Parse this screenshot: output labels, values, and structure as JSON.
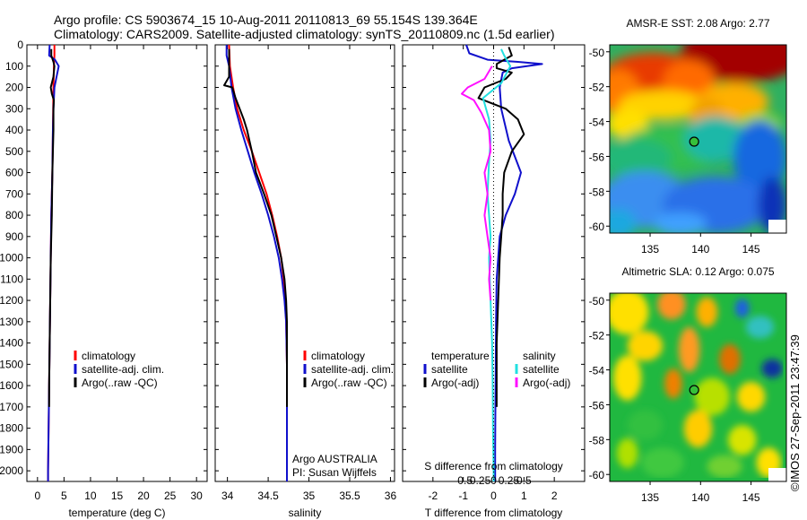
{
  "header": {
    "title_line1": "Argo profile: CS 5903674_15 10-Aug-2011 20110813_69 55.154S 139.364E",
    "title_line2": "Climatology: CARS2009. Satellite-adjusted climatology: synTS_20110809.nc (1.5d earlier)"
  },
  "colors": {
    "red": "#ff0000",
    "blue": "#1010cc",
    "black": "#000000",
    "cyan": "#22e0e0",
    "magenta": "#ff10ff"
  },
  "credit": "©IMOS 27-Sep-2011 23:47:39",
  "chart_data": [
    {
      "type": "line",
      "panel": "temperature",
      "xlabel": "temperature (deg C)",
      "ylabel": "",
      "xlim": [
        -2,
        32
      ],
      "ylim": [
        2050,
        0
      ],
      "xticks": [
        0,
        5,
        10,
        15,
        20,
        25,
        30
      ],
      "xtick_labels": [
        "0",
        "5",
        "10",
        "15",
        "20",
        "25",
        "30"
      ],
      "yticks": [
        0,
        100,
        200,
        300,
        400,
        500,
        600,
        700,
        800,
        900,
        1000,
        1100,
        1200,
        1300,
        1400,
        1500,
        1600,
        1700,
        1800,
        1900,
        2000
      ],
      "ytick_labels": [
        "0",
        "100",
        "200",
        "300",
        "400",
        "500",
        "600",
        "700",
        "800",
        "900",
        "1000",
        "1100",
        "1200",
        "1300",
        "1400",
        "1500",
        "1600",
        "1700",
        "1800",
        "1900",
        "2000"
      ],
      "legend": [
        "climatology",
        "satellite-adj. clim.",
        "Argo(..raw -QC)"
      ],
      "legend_location": "center-right",
      "series": [
        {
          "name": "climatology",
          "color": "red",
          "points": [
            [
              3.2,
              0
            ],
            [
              3.2,
              50
            ],
            [
              3.1,
              100
            ],
            [
              3.0,
              200
            ],
            [
              2.9,
              400
            ],
            [
              2.8,
              600
            ],
            [
              2.6,
              800
            ],
            [
              2.5,
              1000
            ],
            [
              2.4,
              1200
            ],
            [
              2.3,
              1400
            ],
            [
              2.2,
              1600
            ],
            [
              2.1,
              1800
            ],
            [
              2.0,
              2000
            ],
            [
              2.0,
              2050
            ]
          ]
        },
        {
          "name": "satellite-adj. clim.",
          "color": "blue",
          "points": [
            [
              2.3,
              0
            ],
            [
              2.2,
              50
            ],
            [
              3.3,
              70
            ],
            [
              4.0,
              100
            ],
            [
              3.6,
              150
            ],
            [
              3.2,
              200
            ],
            [
              3.0,
              300
            ],
            [
              2.9,
              400
            ],
            [
              2.8,
              600
            ],
            [
              2.6,
              800
            ],
            [
              2.5,
              1000
            ],
            [
              2.4,
              1200
            ],
            [
              2.3,
              1400
            ],
            [
              2.2,
              1600
            ],
            [
              2.1,
              1800
            ],
            [
              2.0,
              2000
            ],
            [
              2.0,
              2050
            ]
          ]
        },
        {
          "name": "Argo(..raw -QC)",
          "color": "black",
          "points": [
            [
              2.6,
              20
            ],
            [
              2.6,
              50
            ],
            [
              3.0,
              80
            ],
            [
              3.2,
              100
            ],
            [
              3.0,
              150
            ],
            [
              2.5,
              200
            ],
            [
              2.7,
              230
            ],
            [
              3.1,
              260
            ],
            [
              3.0,
              300
            ],
            [
              3.0,
              400
            ],
            [
              2.8,
              600
            ],
            [
              2.7,
              800
            ],
            [
              2.5,
              1000
            ],
            [
              2.4,
              1200
            ],
            [
              2.3,
              1400
            ],
            [
              2.2,
              1600
            ],
            [
              2.2,
              1700
            ]
          ]
        }
      ]
    },
    {
      "type": "line",
      "panel": "salinity",
      "xlabel": "salinity",
      "ylabel": "",
      "xlim": [
        33.85,
        36.05
      ],
      "ylim": [
        2050,
        0
      ],
      "xticks": [
        34,
        34.5,
        35,
        35.5,
        36
      ],
      "xtick_labels": [
        "34",
        "34.5",
        "35",
        "35.5",
        "36"
      ],
      "legend": [
        "climatology",
        "satellite-adj. clim.",
        "Argo(..raw -QC)"
      ],
      "legend_location": "center-right",
      "annotation": [
        "Argo AUSTRALIA",
        "PI: Susan Wijffels"
      ],
      "series": [
        {
          "name": "climatology",
          "color": "red",
          "points": [
            [
              34.02,
              0
            ],
            [
              34.03,
              100
            ],
            [
              34.07,
              200
            ],
            [
              34.12,
              300
            ],
            [
              34.2,
              400
            ],
            [
              34.3,
              500
            ],
            [
              34.39,
              600
            ],
            [
              34.48,
              700
            ],
            [
              34.55,
              800
            ],
            [
              34.61,
              900
            ],
            [
              34.66,
              1000
            ],
            [
              34.69,
              1100
            ],
            [
              34.71,
              1200
            ],
            [
              34.72,
              1300
            ],
            [
              34.73,
              1500
            ],
            [
              34.73,
              1700
            ],
            [
              34.73,
              2050
            ]
          ]
        },
        {
          "name": "satellite-adj. clim.",
          "color": "blue",
          "points": [
            [
              33.99,
              0
            ],
            [
              33.99,
              50
            ],
            [
              34.02,
              100
            ],
            [
              34.05,
              200
            ],
            [
              34.1,
              300
            ],
            [
              34.17,
              400
            ],
            [
              34.25,
              500
            ],
            [
              34.33,
              600
            ],
            [
              34.42,
              700
            ],
            [
              34.5,
              800
            ],
            [
              34.57,
              900
            ],
            [
              34.63,
              1000
            ],
            [
              34.67,
              1100
            ],
            [
              34.7,
              1200
            ],
            [
              34.72,
              1300
            ],
            [
              34.73,
              1500
            ],
            [
              34.73,
              1700
            ],
            [
              34.73,
              2050
            ]
          ]
        },
        {
          "name": "Argo(..raw -QC)",
          "color": "black",
          "points": [
            [
              34.02,
              20
            ],
            [
              34.02,
              150
            ],
            [
              33.96,
              190
            ],
            [
              34.06,
              200
            ],
            [
              34.1,
              250
            ],
            [
              34.15,
              300
            ],
            [
              34.2,
              350
            ],
            [
              34.24,
              400
            ],
            [
              34.3,
              500
            ],
            [
              34.35,
              600
            ],
            [
              34.45,
              700
            ],
            [
              34.54,
              800
            ],
            [
              34.6,
              900
            ],
            [
              34.66,
              1000
            ],
            [
              34.7,
              1100
            ],
            [
              34.72,
              1200
            ],
            [
              34.73,
              1300
            ],
            [
              34.73,
              1500
            ],
            [
              34.73,
              1700
            ]
          ]
        }
      ]
    },
    {
      "type": "line",
      "panel": "difference",
      "xlabel": "T difference from climatology",
      "x2label": "S difference from climatology",
      "xlim": [
        -3,
        3
      ],
      "ylim": [
        2050,
        0
      ],
      "xticks": [
        -2,
        -1,
        0,
        1,
        2
      ],
      "xtick_labels": [
        "-2",
        "-1",
        "0",
        "1",
        "2"
      ],
      "x2ticks": [
        -0.5,
        -0.25,
        0,
        0.25,
        0.5
      ],
      "x2tick_labels": [
        "-0.5",
        "-0.25",
        "0",
        "0.25",
        "0.5"
      ],
      "legend_temperature_title": "temperature",
      "legend_salinity_title": "salinity",
      "legend": [
        "satellite",
        "Argo(-adj)",
        "satellite",
        "Argo(-adj)"
      ],
      "legend_location": "center",
      "series": [
        {
          "name": "temperature satellite",
          "color": "blue",
          "points": [
            [
              -0.9,
              0
            ],
            [
              -0.8,
              40
            ],
            [
              -0.2,
              70
            ],
            [
              0.8,
              80
            ],
            [
              1.6,
              90
            ],
            [
              0.6,
              110
            ],
            [
              0.3,
              130
            ],
            [
              0.2,
              200
            ],
            [
              0.25,
              300
            ],
            [
              0.5,
              450
            ],
            [
              0.9,
              600
            ],
            [
              0.7,
              700
            ],
            [
              0.4,
              800
            ],
            [
              0.2,
              900
            ],
            [
              0.1,
              1100
            ],
            [
              0.08,
              1300
            ],
            [
              0.07,
              1500
            ],
            [
              0.06,
              1700
            ],
            [
              0.05,
              1900
            ],
            [
              0.05,
              2050
            ]
          ]
        },
        {
          "name": "temperature Argo(-adj)",
          "color": "black",
          "points": [
            [
              0.5,
              10
            ],
            [
              0.6,
              50
            ],
            [
              0.1,
              90
            ],
            [
              0.1,
              110
            ],
            [
              0.6,
              130
            ],
            [
              0.4,
              160
            ],
            [
              -0.3,
              200
            ],
            [
              -0.5,
              250
            ],
            [
              0.4,
              300
            ],
            [
              0.8,
              350
            ],
            [
              1.0,
              420
            ],
            [
              0.6,
              500
            ],
            [
              0.35,
              600
            ],
            [
              0.3,
              700
            ],
            [
              0.3,
              800
            ],
            [
              0.25,
              900
            ],
            [
              0.2,
              1000
            ],
            [
              0.15,
              1200
            ],
            [
              0.1,
              1400
            ],
            [
              0.1,
              1700
            ]
          ]
        },
        {
          "name": "salinity satellite",
          "color": "cyan",
          "points": [
            [
              0.25,
              20
            ],
            [
              0.35,
              50
            ],
            [
              0.55,
              100
            ],
            [
              0.25,
              180
            ],
            [
              -0.35,
              250
            ],
            [
              -0.15,
              350
            ],
            [
              -0.1,
              450
            ],
            [
              -0.15,
              550
            ],
            [
              -0.2,
              700
            ],
            [
              -0.1,
              900
            ],
            [
              -0.15,
              1000
            ],
            [
              -0.1,
              1200
            ],
            [
              -0.05,
              1400
            ],
            [
              -0.03,
              1600
            ],
            [
              -0.02,
              1800
            ],
            [
              0.0,
              2000
            ],
            [
              0.0,
              2050
            ]
          ]
        },
        {
          "name": "salinity Argo(-adj)",
          "color": "magenta",
          "points": [
            [
              -0.05,
              100
            ],
            [
              -0.3,
              160
            ],
            [
              -0.85,
              200
            ],
            [
              -1.05,
              230
            ],
            [
              -0.65,
              260
            ],
            [
              -0.4,
              320
            ],
            [
              -0.15,
              400
            ],
            [
              -0.1,
              500
            ],
            [
              -0.3,
              600
            ],
            [
              -0.2,
              700
            ],
            [
              -0.3,
              800
            ],
            [
              -0.2,
              900
            ],
            [
              -0.1,
              1000
            ],
            [
              -0.15,
              1100
            ],
            [
              -0.1,
              1200
            ]
          ]
        }
      ]
    },
    {
      "type": "heatmap",
      "panel": "sst",
      "title": "AMSR-E SST: 2.08 Argo: 2.77",
      "xlim": [
        131,
        148.5
      ],
      "ylim": [
        -60.4,
        -49.6
      ],
      "xticks": [
        135,
        140,
        145
      ],
      "xtick_labels": [
        "135",
        "140",
        "145"
      ],
      "yticks": [
        -50,
        -52,
        -54,
        -56,
        -58,
        -60
      ],
      "ytick_labels": [
        "-50",
        "-52",
        "-54",
        "-56",
        "-58",
        "-60"
      ],
      "marker": [
        139.364,
        -55.154
      ]
    },
    {
      "type": "heatmap",
      "panel": "sla",
      "title": "Altimetric SLA: 0.12 Argo: 0.075",
      "xlim": [
        131,
        148.5
      ],
      "ylim": [
        -60.4,
        -49.6
      ],
      "xticks": [
        135,
        140,
        145
      ],
      "xtick_labels": [
        "135",
        "140",
        "145"
      ],
      "yticks": [
        -50,
        -52,
        -54,
        -56,
        -58,
        -60
      ],
      "ytick_labels": [
        "-50",
        "-52",
        "-54",
        "-56",
        "-58",
        "-60"
      ],
      "marker": [
        139.364,
        -55.154
      ]
    }
  ]
}
